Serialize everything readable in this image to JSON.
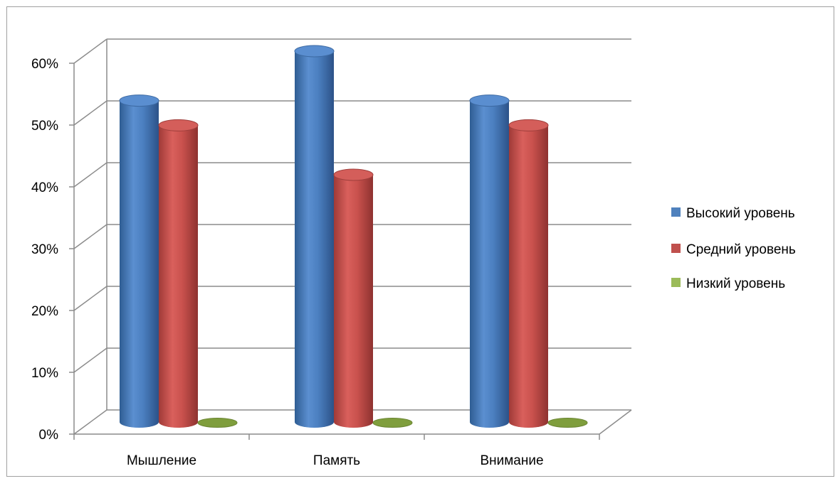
{
  "chart_data": {
    "type": "bar",
    "style": "3d-cylinder",
    "categories": [
      "Мышление",
      "Память",
      "Внимание"
    ],
    "series": [
      {
        "name": "Высокий уровень",
        "values": [
          0.52,
          0.6,
          0.52
        ],
        "color": "#4F81BD"
      },
      {
        "name": "Средний уровень",
        "values": [
          0.48,
          0.4,
          0.48
        ],
        "color": "#C0504D"
      },
      {
        "name": "Низкий уровень",
        "values": [
          0.0,
          0.0,
          0.0
        ],
        "color": "#9BBB59"
      }
    ],
    "y_ticks": [
      "0%",
      "10%",
      "20%",
      "30%",
      "40%",
      "50%",
      "60%"
    ],
    "ylim": [
      0,
      0.6
    ],
    "grid": true,
    "legend": "right"
  }
}
